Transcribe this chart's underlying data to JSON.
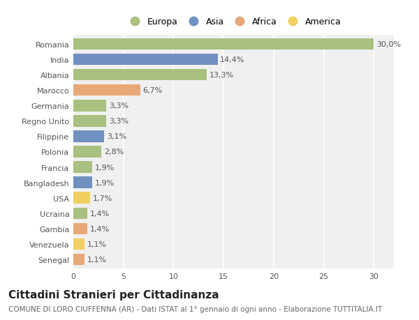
{
  "categories": [
    "Romania",
    "India",
    "Albania",
    "Marocco",
    "Germania",
    "Regno Unito",
    "Filippine",
    "Polonia",
    "Francia",
    "Bangladesh",
    "USA",
    "Ucraina",
    "Gambia",
    "Venezuela",
    "Senegal"
  ],
  "values": [
    30.0,
    14.4,
    13.3,
    6.7,
    3.3,
    3.3,
    3.1,
    2.8,
    1.9,
    1.9,
    1.7,
    1.4,
    1.4,
    1.1,
    1.1
  ],
  "labels": [
    "30,0%",
    "14,4%",
    "13,3%",
    "6,7%",
    "3,3%",
    "3,3%",
    "3,1%",
    "2,8%",
    "1,9%",
    "1,9%",
    "1,7%",
    "1,4%",
    "1,4%",
    "1,1%",
    "1,1%"
  ],
  "continents": [
    "Europa",
    "Asia",
    "Europa",
    "Africa",
    "Europa",
    "Europa",
    "Asia",
    "Europa",
    "Europa",
    "Asia",
    "America",
    "Europa",
    "Africa",
    "America",
    "Africa"
  ],
  "colors": {
    "Europa": "#a8c080",
    "Asia": "#7090c0",
    "Africa": "#e8a878",
    "America": "#f0d060"
  },
  "background_color": "#ffffff",
  "plot_bg_color": "#f0f0f0",
  "title": "Cittadini Stranieri per Cittadinanza",
  "subtitle": "COMUNE DI LORO CIUFFENNA (AR) - Dati ISTAT al 1° gennaio di ogni anno - Elaborazione TUTTITALIA.IT",
  "xlim": [
    0,
    32
  ],
  "xticks": [
    0,
    5,
    10,
    15,
    20,
    25,
    30
  ],
  "grid_color": "#ffffff",
  "bar_height": 0.75,
  "label_fontsize": 8.0,
  "title_fontsize": 11,
  "subtitle_fontsize": 7.5,
  "tick_fontsize": 8.0,
  "legend_fontsize": 9.0,
  "legend_order": [
    "Europa",
    "Asia",
    "Africa",
    "America"
  ]
}
